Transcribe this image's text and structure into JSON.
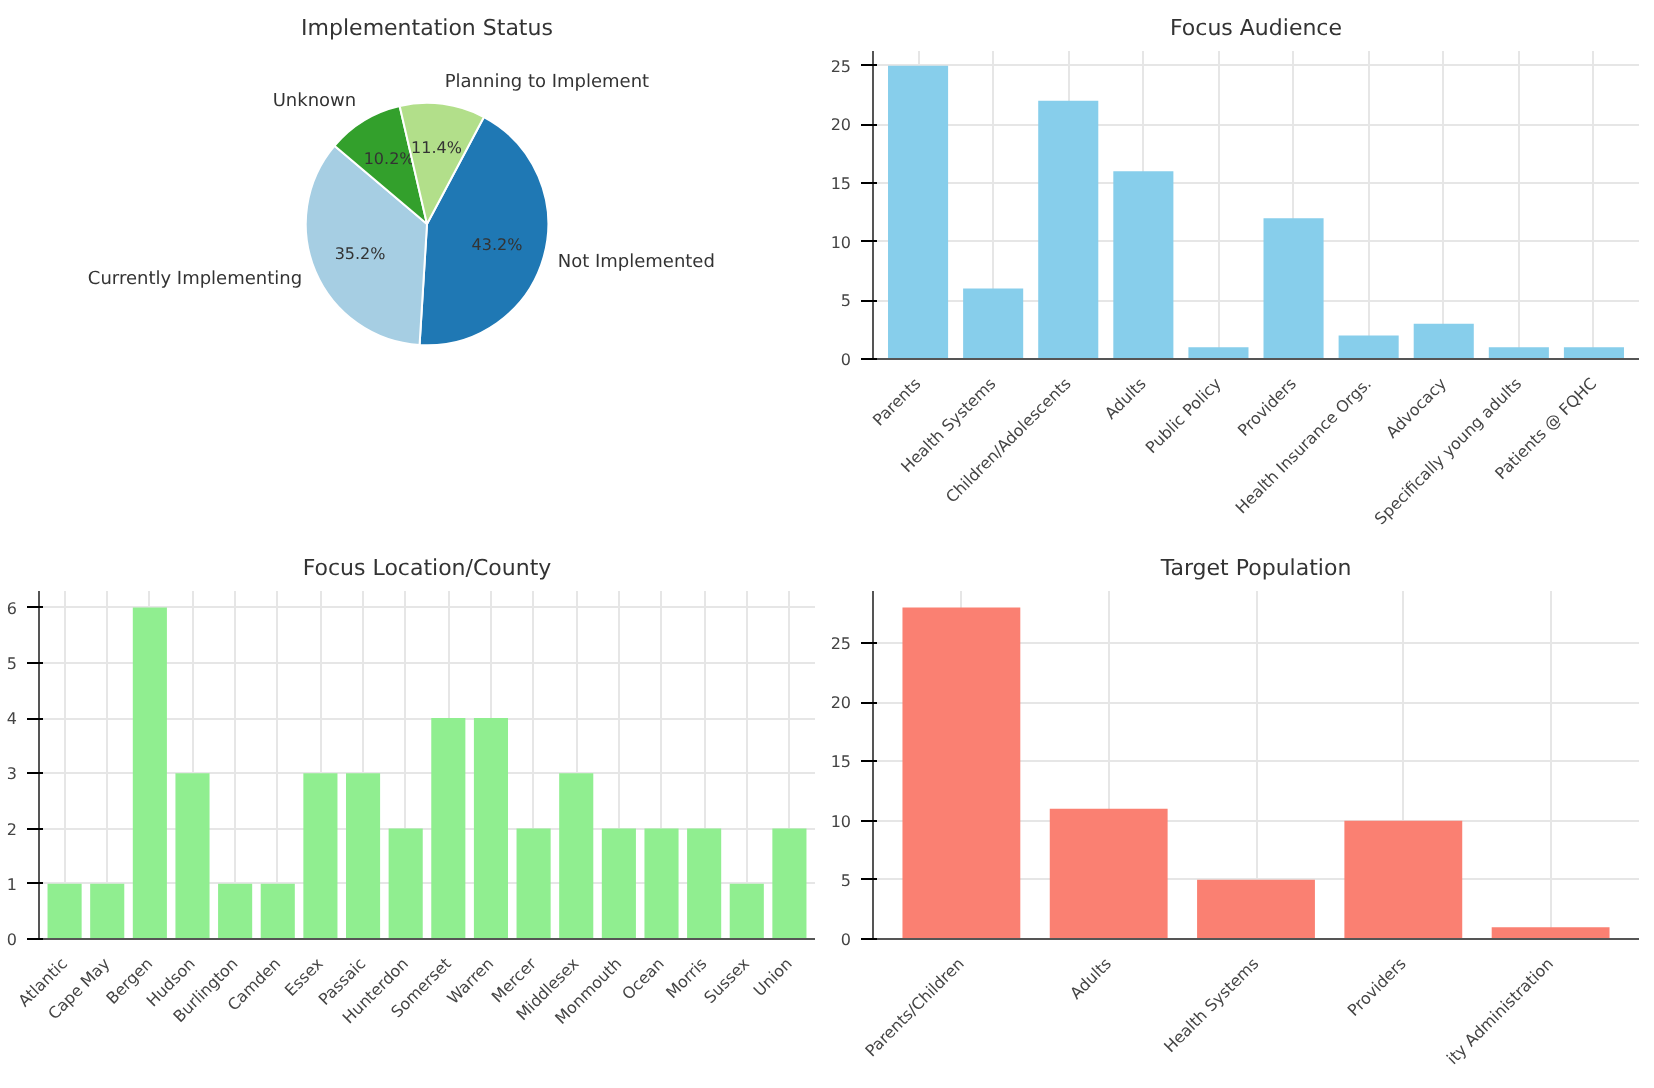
{
  "chart_data": [
    {
      "type": "pie",
      "title": "Implementation Status",
      "categories": [
        "Not Implemented",
        "Currently Implementing",
        "Unknown",
        "Planning to Implement"
      ],
      "values": [
        43.2,
        35.2,
        10.2,
        11.4
      ],
      "colors": [
        "#1f78b4",
        "#a6cee3",
        "#33a02c",
        "#b2df8a"
      ],
      "value_labels": [
        "43.2%",
        "35.2%",
        "10.2%",
        "11.4%"
      ]
    },
    {
      "type": "bar",
      "title": "Focus Audience",
      "categories": [
        "Parents",
        "Health Systems",
        "Children/Adolescents",
        "Adults",
        "Public Policy",
        "Providers",
        "Health Insurance Orgs.",
        "Advocacy",
        "Specifically young adults",
        "Patients @ FQHC"
      ],
      "values": [
        25,
        6,
        22,
        16,
        1,
        12,
        2,
        3,
        1,
        1
      ],
      "color": "#87ceeb",
      "ylim": [
        0,
        26.25
      ],
      "yticks": [
        0,
        5,
        10,
        15,
        20,
        25
      ],
      "grid": true
    },
    {
      "type": "bar",
      "title": "Focus Location/County",
      "categories": [
        "Atlantic",
        "Cape May",
        "Bergen",
        "Hudson",
        "Burlington",
        "Camden",
        "Essex",
        "Passaic",
        "Hunterdon",
        "Somerset",
        "Warren",
        "Mercer",
        "Middlesex",
        "Monmouth",
        "Ocean",
        "Morris",
        "Sussex",
        "Union"
      ],
      "values": [
        1,
        1,
        6,
        3,
        1,
        1,
        3,
        3,
        2,
        4,
        4,
        2,
        3,
        2,
        2,
        2,
        1,
        2
      ],
      "color": "#90ee90",
      "ylim": [
        0,
        6.3
      ],
      "yticks": [
        0,
        1,
        2,
        3,
        4,
        5,
        6
      ],
      "grid": true
    },
    {
      "type": "bar",
      "title": "Target Population",
      "categories": [
        "Parents/Children",
        "Adults",
        "Health Systems",
        "Providers",
        "ity Administration"
      ],
      "values": [
        28,
        11,
        5,
        10,
        1
      ],
      "color": "#fa8072",
      "ylim": [
        0,
        29.4
      ],
      "yticks": [
        0,
        5,
        10,
        15,
        20,
        25
      ],
      "grid": true
    }
  ]
}
